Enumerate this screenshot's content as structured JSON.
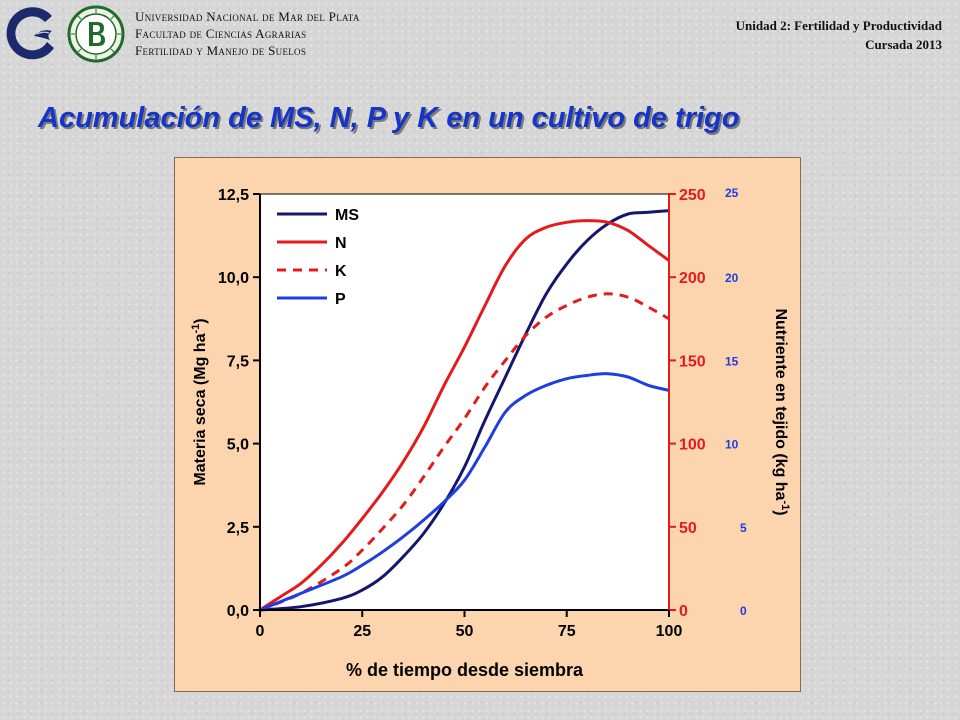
{
  "header": {
    "university_lines": [
      "Universidad Nacional de Mar del Plata",
      "Facultad de Ciencias Agrarias",
      "Fertilidad y Manejo de Suelos"
    ],
    "unit_lines": [
      "Unidad 2: Fertilidad y Productividad",
      "Cursada 2013"
    ]
  },
  "slide": {
    "title": "Acumulación de MS, N, P y K en un cultivo de trigo"
  },
  "colors": {
    "background": "#d6d6d6",
    "title": "#1534c8",
    "panel": "#fcd5ae",
    "ms": "#16166e",
    "n": "#e31b1b",
    "k": "#e31b1b",
    "p": "#1d3ee0",
    "axis_left": "#000000",
    "axis_right_n": "#e31b1b",
    "axis_right_p": "#1d3ee0"
  },
  "chart_data": {
    "type": "line",
    "xlabel": "% de tiempo desde siembra",
    "xlim": [
      0,
      100
    ],
    "x_ticks": [
      "0",
      "25",
      "50",
      "75",
      "100"
    ],
    "ylabel_left": "Materia seca (Mg ha-1)",
    "ylim_left": [
      0,
      12.5
    ],
    "y_ticks_left": [
      "0,0",
      "2,5",
      "5,0",
      "7,5",
      "10,0",
      "12,5"
    ],
    "ylabel_right": "Nutriente en tejido (kg ha-1)",
    "ylim_right_n": [
      0,
      250
    ],
    "y_ticks_right_n": [
      "0",
      "50",
      "100",
      "150",
      "200",
      "250"
    ],
    "ylim_right_p": [
      0,
      25
    ],
    "y_ticks_right_p": [
      "0",
      "5",
      "10",
      "15",
      "20",
      "25"
    ],
    "legend_position": "top-left",
    "grid": false,
    "series": [
      {
        "name": "MS",
        "axis": "left",
        "style": "solid",
        "x": [
          0,
          10,
          20,
          25,
          30,
          35,
          40,
          45,
          50,
          55,
          60,
          65,
          70,
          75,
          80,
          85,
          90,
          95,
          100
        ],
        "y": [
          0,
          0.1,
          0.35,
          0.6,
          1.0,
          1.6,
          2.3,
          3.2,
          4.3,
          5.7,
          7.0,
          8.3,
          9.5,
          10.4,
          11.1,
          11.6,
          11.9,
          11.95,
          12.0
        ]
      },
      {
        "name": "N",
        "axis": "right_n",
        "style": "solid",
        "x": [
          0,
          5,
          10,
          15,
          20,
          25,
          30,
          35,
          40,
          45,
          50,
          55,
          60,
          65,
          70,
          75,
          80,
          85,
          90,
          95,
          100
        ],
        "y": [
          0,
          8,
          16,
          27,
          40,
          55,
          71,
          89,
          110,
          135,
          158,
          183,
          207,
          223,
          230,
          233,
          234,
          233,
          228,
          219,
          210
        ]
      },
      {
        "name": "K",
        "axis": "right_n",
        "style": "dashed",
        "x": [
          0,
          10,
          20,
          25,
          30,
          35,
          40,
          45,
          50,
          55,
          60,
          65,
          70,
          75,
          80,
          85,
          90,
          95,
          100
        ],
        "y": [
          0,
          10,
          25,
          36,
          49,
          63,
          80,
          98,
          115,
          134,
          150,
          165,
          176,
          183,
          188,
          190,
          188,
          182,
          175
        ]
      },
      {
        "name": "P",
        "axis": "right_p",
        "style": "solid",
        "x": [
          0,
          10,
          20,
          25,
          30,
          35,
          40,
          45,
          50,
          55,
          60,
          65,
          70,
          75,
          80,
          85,
          90,
          95,
          100
        ],
        "y": [
          0,
          1.0,
          2.0,
          2.7,
          3.5,
          4.4,
          5.4,
          6.5,
          7.8,
          9.8,
          11.9,
          12.9,
          13.5,
          13.9,
          14.1,
          14.2,
          14.0,
          13.5,
          13.2
        ]
      }
    ]
  }
}
